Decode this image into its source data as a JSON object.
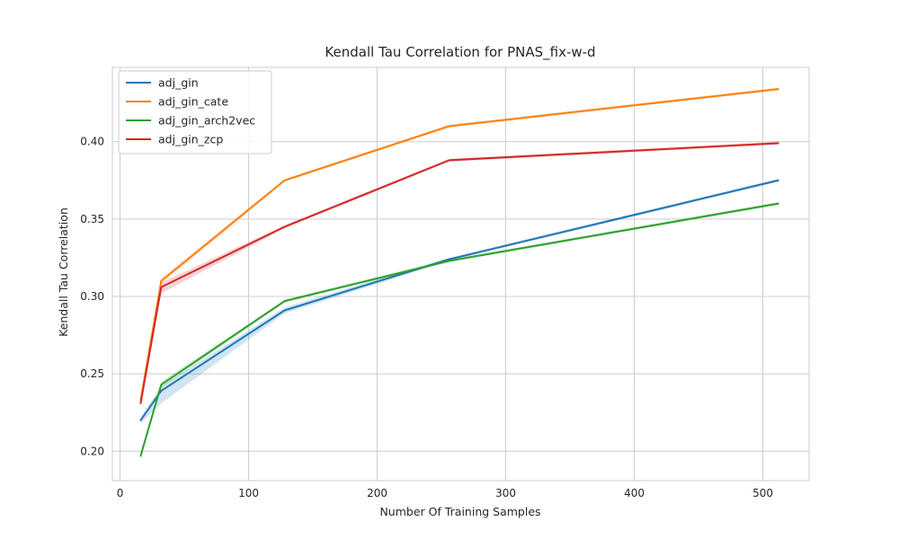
{
  "chart_data": {
    "type": "line",
    "title": "Kendall Tau Correlation for PNAS_fix-w-d",
    "xlabel": "Number Of Training Samples",
    "ylabel": "Kendall Tau Correlation",
    "xlim": [
      -6,
      536
    ],
    "ylim": [
      0.181,
      0.448
    ],
    "xticks": [
      0,
      100,
      200,
      300,
      400,
      500
    ],
    "yticks": [
      0.2,
      0.25,
      0.3,
      0.35,
      0.4
    ],
    "ytick_labels": [
      "0.20",
      "0.25",
      "0.30",
      "0.35",
      "0.40"
    ],
    "grid": true,
    "legend_position": "top-left",
    "x": [
      16,
      32,
      128,
      256,
      512
    ],
    "series": [
      {
        "name": "adj_gin",
        "color": "#1f77b4",
        "values": [
          0.22,
          0.239,
          0.291,
          0.324,
          0.375
        ],
        "lower": [
          0.218,
          0.231,
          0.289,
          0.323,
          0.374
        ],
        "upper": [
          0.222,
          0.242,
          0.293,
          0.325,
          0.376
        ]
      },
      {
        "name": "adj_gin_cate",
        "color": "#ff7f0e",
        "values": [
          0.233,
          0.31,
          0.375,
          0.41,
          0.434
        ],
        "lower": [
          0.232,
          0.308,
          0.374,
          0.409,
          0.433
        ],
        "upper": [
          0.234,
          0.312,
          0.376,
          0.411,
          0.435
        ]
      },
      {
        "name": "adj_gin_arch2vec",
        "color": "#2ca02c",
        "values": [
          0.197,
          0.243,
          0.297,
          0.323,
          0.36
        ],
        "lower": [
          0.196,
          0.241,
          0.296,
          0.322,
          0.359
        ],
        "upper": [
          0.198,
          0.245,
          0.298,
          0.324,
          0.361
        ]
      },
      {
        "name": "adj_gin_zcp",
        "color": "#d62728",
        "values": [
          0.231,
          0.306,
          0.345,
          0.388,
          0.399
        ],
        "lower": [
          0.23,
          0.302,
          0.344,
          0.387,
          0.398
        ],
        "upper": [
          0.232,
          0.309,
          0.346,
          0.389,
          0.4
        ]
      }
    ]
  }
}
